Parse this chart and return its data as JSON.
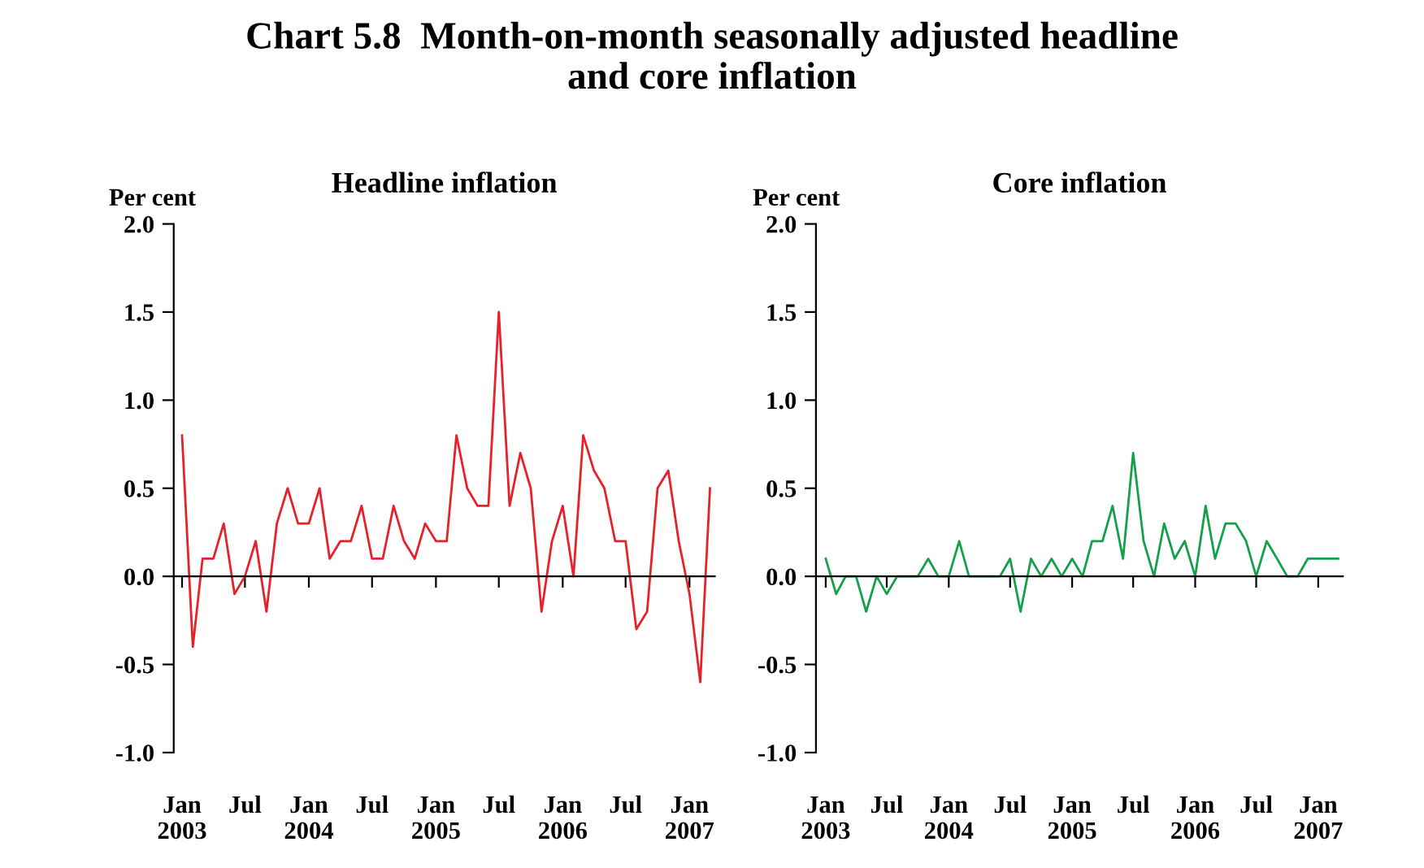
{
  "chart_data": [
    {
      "type": "line",
      "title": "Headline inflation",
      "ylabel": "Per cent",
      "annotations": [
        "Chart 5.8  Month-on-month seasonally adjusted headline\nand core inflation"
      ],
      "x": [
        "2003-01",
        "2003-02",
        "2003-03",
        "2003-04",
        "2003-05",
        "2003-06",
        "2003-07",
        "2003-08",
        "2003-09",
        "2003-10",
        "2003-11",
        "2003-12",
        "2004-01",
        "2004-02",
        "2004-03",
        "2004-04",
        "2004-05",
        "2004-06",
        "2004-07",
        "2004-08",
        "2004-09",
        "2004-10",
        "2004-11",
        "2004-12",
        "2005-01",
        "2005-02",
        "2005-03",
        "2005-04",
        "2005-05",
        "2005-06",
        "2005-07",
        "2005-08",
        "2005-09",
        "2005-10",
        "2005-11",
        "2005-12",
        "2006-01",
        "2006-02",
        "2006-03",
        "2006-04",
        "2006-05",
        "2006-06",
        "2006-07",
        "2006-08",
        "2006-09",
        "2006-10",
        "2006-11",
        "2006-12",
        "2007-01",
        "2007-02",
        "2007-03"
      ],
      "series": [
        {
          "color": "#e8202a",
          "values": [
            0.8,
            -0.4,
            0.1,
            0.1,
            0.3,
            -0.1,
            0.0,
            0.2,
            -0.2,
            0.3,
            0.5,
            0.3,
            0.3,
            0.5,
            0.1,
            0.2,
            0.2,
            0.4,
            0.1,
            0.1,
            0.4,
            0.2,
            0.1,
            0.3,
            0.2,
            0.2,
            0.8,
            0.5,
            0.4,
            0.4,
            1.5,
            0.4,
            0.7,
            0.5,
            -0.2,
            0.2,
            0.4,
            0.0,
            0.8,
            0.6,
            0.5,
            0.2,
            0.2,
            -0.3,
            -0.2,
            0.5,
            0.6,
            0.2,
            -0.1,
            -0.6,
            0.5
          ]
        }
      ],
      "xlim": [
        "2002-12-08",
        "2007-03-15"
      ],
      "ylim": [
        -1.0,
        2.0
      ],
      "xticks": [
        {
          "value": "2003-01",
          "label": "Jan\n2003"
        },
        {
          "value": "2003-07",
          "label": "Jul"
        },
        {
          "value": "2004-01",
          "label": "Jan\n2004"
        },
        {
          "value": "2004-07",
          "label": "Jul"
        },
        {
          "value": "2005-01",
          "label": "Jan\n2005"
        },
        {
          "value": "2005-07",
          "label": "Jul"
        },
        {
          "value": "2006-01",
          "label": "Jan\n2006"
        },
        {
          "value": "2006-07",
          "label": "Jul"
        },
        {
          "value": "2007-01",
          "label": "Jan\n2007"
        }
      ],
      "yticks": [
        {
          "value": -1.0,
          "label": "-1.0"
        },
        {
          "value": -0.5,
          "label": "-0.5"
        },
        {
          "value": 0.0,
          "label": "0.0"
        },
        {
          "value": 0.5,
          "label": "0.5"
        },
        {
          "value": 1.0,
          "label": "1.0"
        },
        {
          "value": 1.5,
          "label": "1.5"
        },
        {
          "value": 2.0,
          "label": "2.0"
        }
      ],
      "legend": false,
      "marker": "none",
      "line_style": "solid"
    },
    {
      "type": "line",
      "title": "Core inflation",
      "ylabel": "Per cent",
      "x": [
        "2003-01",
        "2003-02",
        "2003-03",
        "2003-04",
        "2003-05",
        "2003-06",
        "2003-07",
        "2003-08",
        "2003-09",
        "2003-10",
        "2003-11",
        "2003-12",
        "2004-01",
        "2004-02",
        "2004-03",
        "2004-04",
        "2004-05",
        "2004-06",
        "2004-07",
        "2004-08",
        "2004-09",
        "2004-10",
        "2004-11",
        "2004-12",
        "2005-01",
        "2005-02",
        "2005-03",
        "2005-04",
        "2005-05",
        "2005-06",
        "2005-07",
        "2005-08",
        "2005-09",
        "2005-10",
        "2005-11",
        "2005-12",
        "2006-01",
        "2006-02",
        "2006-03",
        "2006-04",
        "2006-05",
        "2006-06",
        "2006-07",
        "2006-08",
        "2006-09",
        "2006-10",
        "2006-11",
        "2006-12",
        "2007-01",
        "2007-02",
        "2007-03"
      ],
      "series": [
        {
          "color": "#13a04a",
          "values": [
            0.1,
            -0.1,
            0.0,
            0.0,
            -0.2,
            0.0,
            -0.1,
            0.0,
            0.0,
            0.0,
            0.1,
            0.0,
            0.0,
            0.2,
            0.0,
            0.0,
            0.0,
            0.0,
            0.1,
            -0.2,
            0.1,
            0.0,
            0.1,
            0.0,
            0.1,
            0.0,
            0.2,
            0.2,
            0.4,
            0.1,
            0.7,
            0.2,
            0.0,
            0.3,
            0.1,
            0.2,
            0.0,
            0.4,
            0.1,
            0.3,
            0.3,
            0.2,
            0.0,
            0.2,
            0.1,
            0.0,
            0.0,
            0.1,
            0.1,
            0.1,
            0.1
          ]
        }
      ],
      "xlim": [
        "2002-12-03",
        "2007-03-15"
      ],
      "ylim": [
        -1.0,
        2.0
      ],
      "xticks": [
        {
          "value": "2003-01",
          "label": "Jan\n2003"
        },
        {
          "value": "2003-07",
          "label": "Jul"
        },
        {
          "value": "2004-01",
          "label": "Jan\n2004"
        },
        {
          "value": "2004-07",
          "label": "Jul"
        },
        {
          "value": "2005-01",
          "label": "Jan\n2005"
        },
        {
          "value": "2005-07",
          "label": "Jul"
        },
        {
          "value": "2006-01",
          "label": "Jan\n2006"
        },
        {
          "value": "2006-07",
          "label": "Jul"
        },
        {
          "value": "2007-01",
          "label": "Jan\n2007"
        }
      ],
      "yticks": [
        {
          "value": -1.0,
          "label": "-1.0"
        },
        {
          "value": -0.5,
          "label": "-0.5"
        },
        {
          "value": 0.0,
          "label": "0.0"
        },
        {
          "value": 0.5,
          "label": "0.5"
        },
        {
          "value": 1.0,
          "label": "1.0"
        },
        {
          "value": 1.5,
          "label": "1.5"
        },
        {
          "value": 2.0,
          "label": "2.0"
        }
      ],
      "legend": false,
      "marker": "none",
      "line_style": "solid"
    }
  ]
}
